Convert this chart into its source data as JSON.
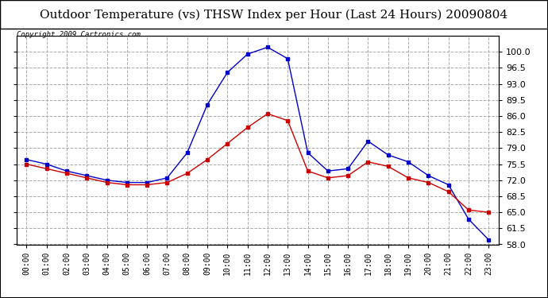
{
  "title": "Outdoor Temperature (vs) THSW Index per Hour (Last 24 Hours) 20090804",
  "copyright": "Copyright 2009 Cartronics.com",
  "hours": [
    "00:00",
    "01:00",
    "02:00",
    "03:00",
    "04:00",
    "05:00",
    "06:00",
    "07:00",
    "08:00",
    "09:00",
    "10:00",
    "11:00",
    "12:00",
    "13:00",
    "14:00",
    "15:00",
    "16:00",
    "17:00",
    "18:00",
    "19:00",
    "20:00",
    "21:00",
    "22:00",
    "23:00"
  ],
  "temp": [
    75.5,
    74.5,
    73.5,
    72.5,
    71.5,
    71.0,
    71.0,
    71.5,
    73.5,
    76.5,
    80.0,
    83.5,
    86.5,
    85.0,
    74.0,
    72.5,
    73.0,
    76.0,
    75.0,
    72.5,
    71.5,
    69.5,
    65.5,
    65.0
  ],
  "thsw": [
    76.5,
    75.5,
    74.0,
    73.0,
    72.0,
    71.5,
    71.5,
    72.5,
    78.0,
    88.5,
    95.5,
    99.5,
    101.0,
    98.5,
    78.0,
    74.0,
    74.5,
    80.5,
    77.5,
    76.0,
    73.0,
    71.0,
    63.5,
    59.0
  ],
  "temp_color": "#cc0000",
  "thsw_color": "#0000cc",
  "marker": "s",
  "marker_size": 3,
  "ylim_min": 58.0,
  "ylim_max": 103.5,
  "yticks": [
    58.0,
    61.5,
    65.0,
    68.5,
    72.0,
    75.5,
    79.0,
    82.5,
    86.0,
    89.5,
    93.0,
    96.5,
    100.0
  ],
  "grid_color": "#aaaaaa",
  "grid_linestyle": "--",
  "bg_color": "#ffffff",
  "title_fontsize": 11,
  "copyright_fontsize": 6.5
}
